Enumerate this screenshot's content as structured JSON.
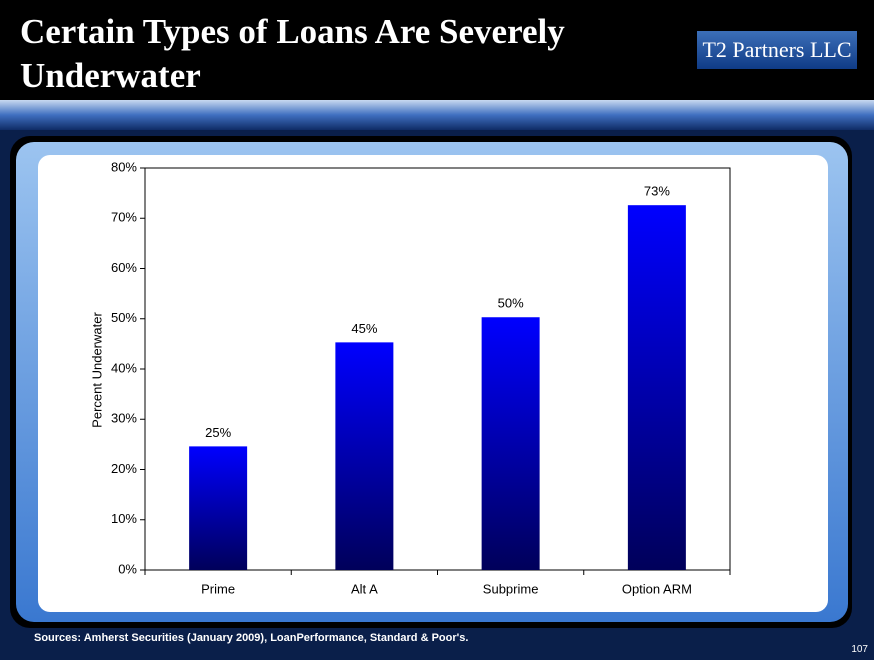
{
  "title": "Certain Types of Loans Are Severely Underwater",
  "logo": "T2 Partners LLC",
  "footer": {
    "sources": "Sources: Amherst Securities (January 2009), LoanPerformance, Standard & Poor's.",
    "page_number": "107"
  },
  "chart_data": {
    "type": "bar",
    "y_label": "Percent Underwater",
    "categories": [
      "Prime",
      "Alt A",
      "Subprime",
      "Option ARM"
    ],
    "values": [
      24.6,
      45.3,
      50.3,
      72.6
    ],
    "value_labels": [
      "25%",
      "45%",
      "50%",
      "73%"
    ],
    "color": "#0000ff",
    "ylim": [
      0,
      80
    ],
    "yticks": [
      {
        "value": 0,
        "label": "0%"
      },
      {
        "value": 10,
        "label": "10%"
      },
      {
        "value": 20,
        "label": "20%"
      },
      {
        "value": 30,
        "label": "30%"
      },
      {
        "value": 40,
        "label": "40%"
      },
      {
        "value": 50,
        "label": "50%"
      },
      {
        "value": 60,
        "label": "60%"
      },
      {
        "value": 70,
        "label": "70%"
      },
      {
        "value": 80,
        "label": "80%"
      }
    ],
    "grid": false
  }
}
